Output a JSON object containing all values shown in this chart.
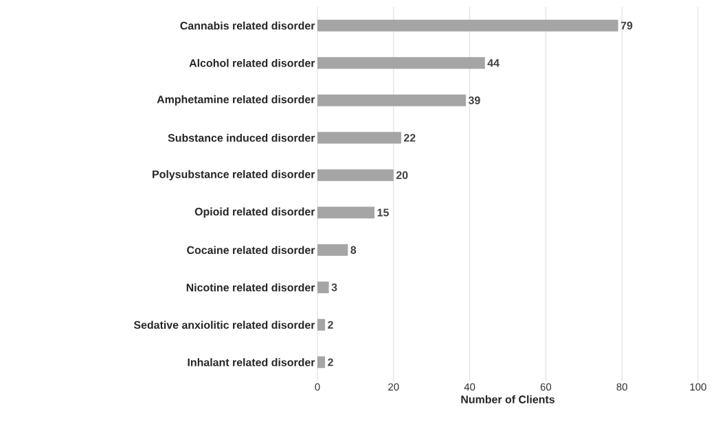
{
  "chart_data": {
    "type": "bar",
    "orientation": "horizontal",
    "xlabel": "Number of Clients",
    "categories": [
      "Cannabis related disorder",
      "Alcohol related disorder",
      "Amphetamine related disorder",
      "Substance induced disorder",
      "Polysubstance related disorder",
      "Opioid related disorder",
      "Cocaine related disorder",
      "Nicotine related disorder",
      "Sedative anxiolitic related disorder",
      "Inhalant related disorder"
    ],
    "values": [
      79,
      44,
      39,
      22,
      20,
      15,
      8,
      3,
      2,
      2
    ],
    "color": "#a5a5a5",
    "xlim": [
      0,
      100
    ],
    "xticks": [
      0,
      20,
      40,
      60,
      80,
      100
    ],
    "grid": "x",
    "data_labels": true
  }
}
